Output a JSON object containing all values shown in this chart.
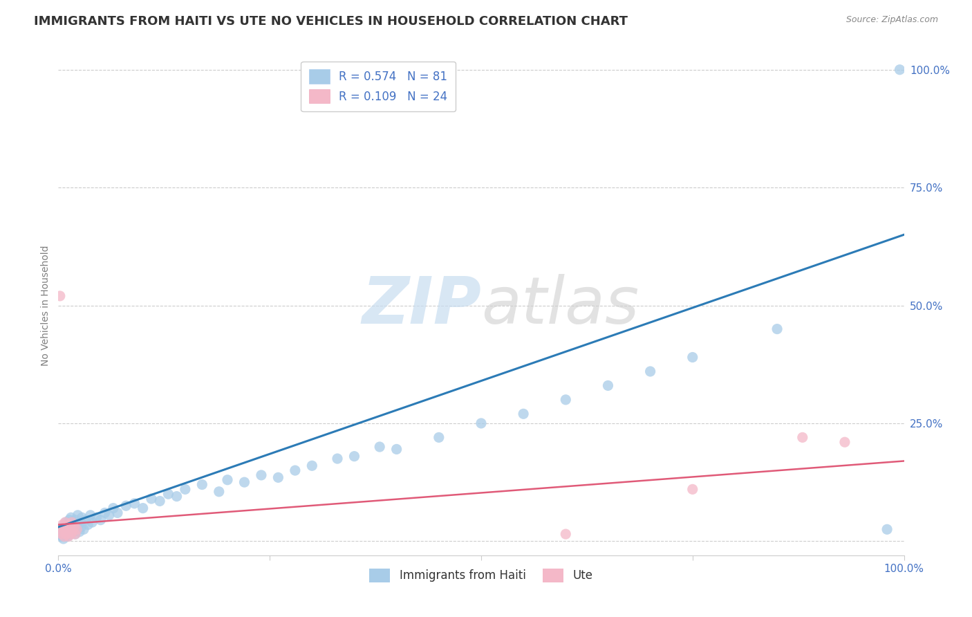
{
  "title": "IMMIGRANTS FROM HAITI VS UTE NO VEHICLES IN HOUSEHOLD CORRELATION CHART",
  "source": "Source: ZipAtlas.com",
  "ylabel": "No Vehicles in Household",
  "xlim": [
    0,
    100
  ],
  "ylim": [
    -3,
    103
  ],
  "x_tick_positions": [
    0,
    25,
    50,
    75,
    100
  ],
  "x_tick_labels": [
    "0.0%",
    "",
    "",
    "",
    "100.0%"
  ],
  "y_tick_positions": [
    0,
    25,
    50,
    75,
    100
  ],
  "y_tick_labels": [
    "",
    "25.0%",
    "50.0%",
    "75.0%",
    "100.0%"
  ],
  "blue_label": "Immigrants from Haiti",
  "pink_label": "Ute",
  "blue_R": "0.574",
  "blue_N": "81",
  "pink_R": "0.109",
  "pink_N": "24",
  "blue_color": "#a8cce8",
  "pink_color": "#f4b8c8",
  "blue_line_color": "#2c7bb6",
  "pink_line_color": "#e05a78",
  "blue_scatter": [
    [
      0.2,
      1.5
    ],
    [
      0.3,
      2.0
    ],
    [
      0.4,
      1.0
    ],
    [
      0.5,
      3.0
    ],
    [
      0.5,
      1.5
    ],
    [
      0.6,
      2.5
    ],
    [
      0.6,
      0.5
    ],
    [
      0.7,
      1.8
    ],
    [
      0.7,
      3.5
    ],
    [
      0.8,
      2.0
    ],
    [
      0.8,
      1.0
    ],
    [
      0.9,
      2.5
    ],
    [
      0.9,
      4.0
    ],
    [
      1.0,
      1.5
    ],
    [
      1.0,
      3.0
    ],
    [
      1.1,
      2.0
    ],
    [
      1.1,
      1.0
    ],
    [
      1.2,
      3.5
    ],
    [
      1.2,
      2.5
    ],
    [
      1.3,
      1.5
    ],
    [
      1.3,
      4.5
    ],
    [
      1.4,
      2.0
    ],
    [
      1.4,
      3.0
    ],
    [
      1.5,
      1.5
    ],
    [
      1.5,
      5.0
    ],
    [
      1.6,
      2.5
    ],
    [
      1.6,
      4.0
    ],
    [
      1.7,
      3.5
    ],
    [
      1.8,
      2.0
    ],
    [
      1.9,
      3.0
    ],
    [
      2.0,
      1.5
    ],
    [
      2.0,
      4.5
    ],
    [
      2.1,
      3.0
    ],
    [
      2.2,
      2.5
    ],
    [
      2.3,
      5.5
    ],
    [
      2.4,
      3.5
    ],
    [
      2.5,
      2.0
    ],
    [
      2.6,
      4.0
    ],
    [
      2.7,
      3.0
    ],
    [
      2.8,
      5.0
    ],
    [
      3.0,
      2.5
    ],
    [
      3.2,
      4.5
    ],
    [
      3.5,
      3.5
    ],
    [
      3.8,
      5.5
    ],
    [
      4.0,
      4.0
    ],
    [
      4.5,
      5.0
    ],
    [
      5.0,
      4.5
    ],
    [
      5.5,
      6.0
    ],
    [
      6.0,
      5.5
    ],
    [
      6.5,
      7.0
    ],
    [
      7.0,
      6.0
    ],
    [
      8.0,
      7.5
    ],
    [
      9.0,
      8.0
    ],
    [
      10.0,
      7.0
    ],
    [
      11.0,
      9.0
    ],
    [
      12.0,
      8.5
    ],
    [
      13.0,
      10.0
    ],
    [
      14.0,
      9.5
    ],
    [
      15.0,
      11.0
    ],
    [
      17.0,
      12.0
    ],
    [
      19.0,
      10.5
    ],
    [
      20.0,
      13.0
    ],
    [
      22.0,
      12.5
    ],
    [
      24.0,
      14.0
    ],
    [
      26.0,
      13.5
    ],
    [
      28.0,
      15.0
    ],
    [
      30.0,
      16.0
    ],
    [
      33.0,
      17.5
    ],
    [
      35.0,
      18.0
    ],
    [
      38.0,
      20.0
    ],
    [
      40.0,
      19.5
    ],
    [
      45.0,
      22.0
    ],
    [
      50.0,
      25.0
    ],
    [
      55.0,
      27.0
    ],
    [
      60.0,
      30.0
    ],
    [
      65.0,
      33.0
    ],
    [
      70.0,
      36.0
    ],
    [
      75.0,
      39.0
    ],
    [
      85.0,
      45.0
    ],
    [
      98.0,
      2.5
    ],
    [
      99.5,
      100.0
    ]
  ],
  "pink_scatter": [
    [
      0.2,
      52.0
    ],
    [
      0.3,
      2.0
    ],
    [
      0.4,
      1.5
    ],
    [
      0.5,
      3.5
    ],
    [
      0.6,
      2.5
    ],
    [
      0.7,
      1.0
    ],
    [
      0.8,
      4.0
    ],
    [
      0.8,
      2.5
    ],
    [
      0.9,
      1.5
    ],
    [
      1.0,
      3.0
    ],
    [
      1.1,
      2.0
    ],
    [
      1.2,
      1.0
    ],
    [
      1.3,
      3.5
    ],
    [
      1.4,
      2.5
    ],
    [
      1.5,
      1.5
    ],
    [
      1.6,
      4.0
    ],
    [
      1.7,
      2.0
    ],
    [
      1.9,
      3.0
    ],
    [
      2.0,
      1.5
    ],
    [
      2.2,
      2.5
    ],
    [
      60.0,
      1.5
    ],
    [
      75.0,
      11.0
    ],
    [
      88.0,
      22.0
    ],
    [
      93.0,
      21.0
    ]
  ],
  "blue_line": [
    [
      0,
      3.0
    ],
    [
      100,
      65.0
    ]
  ],
  "pink_line": [
    [
      0,
      3.5
    ],
    [
      100,
      17.0
    ]
  ],
  "watermark_zip": "ZIP",
  "watermark_atlas": "atlas",
  "background_color": "#ffffff",
  "title_color": "#333333",
  "title_fontsize": 13,
  "axis_label_fontsize": 10,
  "tick_fontsize": 11,
  "legend_fontsize": 12,
  "tick_color": "#4472c4",
  "grid_color": "#cccccc",
  "source_color": "#888888"
}
